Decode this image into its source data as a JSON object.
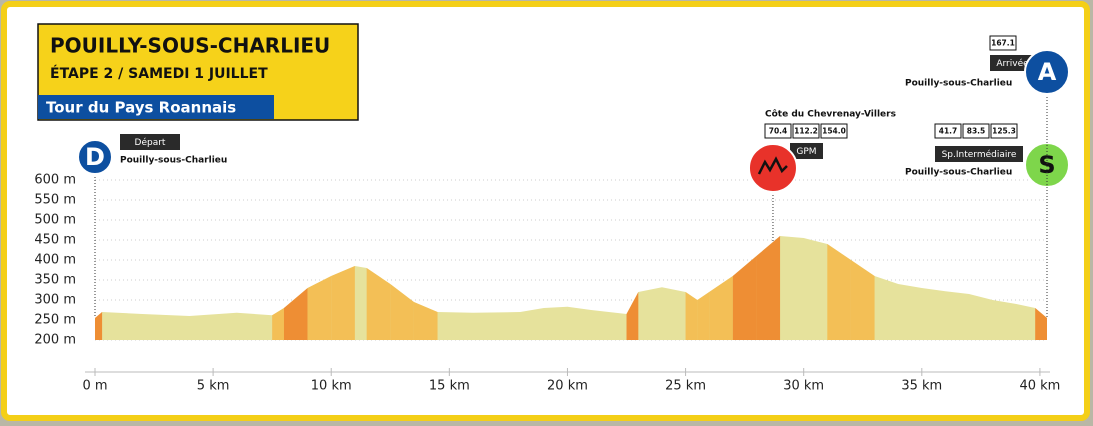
{
  "chart_data": {
    "type": "area",
    "header": {
      "title": "POUILLY-SOUS-CHARLIEU",
      "subtitle": "ÉTAPE 2 / SAMEDI 1 JUILLET",
      "event": "Tour du Pays Roannais"
    },
    "x": [
      0,
      0.3,
      2,
      4,
      6,
      7.5,
      8,
      9,
      10,
      11,
      11.5,
      12.5,
      13.5,
      14.5,
      16,
      18,
      19,
      20,
      21,
      22.5,
      23,
      24,
      25,
      25.5,
      26,
      27,
      28,
      29,
      30,
      31,
      32,
      33,
      34,
      35,
      36,
      37,
      38,
      39,
      39.8,
      40.3
    ],
    "values": [
      255,
      270,
      265,
      260,
      268,
      262,
      280,
      330,
      360,
      385,
      380,
      340,
      295,
      270,
      268,
      270,
      280,
      283,
      275,
      265,
      320,
      332,
      320,
      300,
      320,
      360,
      410,
      460,
      455,
      440,
      400,
      360,
      340,
      330,
      322,
      315,
      300,
      290,
      280,
      255
    ],
    "color": "#e6e29c",
    "xlim": [
      0,
      40.3
    ],
    "xticks": [
      {
        "value": 0,
        "label": "0 m"
      },
      {
        "value": 5,
        "label": "5 km"
      },
      {
        "value": 10,
        "label": "10 km"
      },
      {
        "value": 15,
        "label": "15 km"
      },
      {
        "value": 20,
        "label": "20 km"
      },
      {
        "value": 25,
        "label": "25 km"
      },
      {
        "value": 30,
        "label": "30 km"
      },
      {
        "value": 35,
        "label": "35 km"
      },
      {
        "value": 40,
        "label": "40 km"
      }
    ],
    "ylim": [
      200,
      600
    ],
    "yticks": [
      {
        "value": 200,
        "label": "200 m"
      },
      {
        "value": 250,
        "label": "250 m"
      },
      {
        "value": 300,
        "label": "300 m"
      },
      {
        "value": 350,
        "label": "350 m"
      },
      {
        "value": 400,
        "label": "400 m"
      },
      {
        "value": 450,
        "label": "450 m"
      },
      {
        "value": 500,
        "label": "500 m"
      },
      {
        "value": 550,
        "label": "550 m"
      },
      {
        "value": 600,
        "label": "600 m"
      }
    ],
    "grid": true,
    "markers": [
      {
        "letter": "D",
        "x": 0,
        "label": "Départ",
        "place": "Pouilly-sous-Charlieu"
      },
      {
        "x": 28.7,
        "name": "Côte du Chevrenay-Villers",
        "label": "GPM",
        "boxes": [
          "70.4",
          "112.2",
          "154.0"
        ]
      },
      {
        "letter": "S",
        "x": 40.3,
        "label": "Sp.Intermédiaire",
        "place": "Pouilly-sous-Charlieu",
        "boxes": [
          "41.7",
          "83.5",
          "125.3"
        ]
      },
      {
        "letter": "A",
        "x": 40.3,
        "label": "Arrivée",
        "place": "Pouilly-sous-Charlieu",
        "boxes": [
          "167.1"
        ]
      }
    ]
  }
}
